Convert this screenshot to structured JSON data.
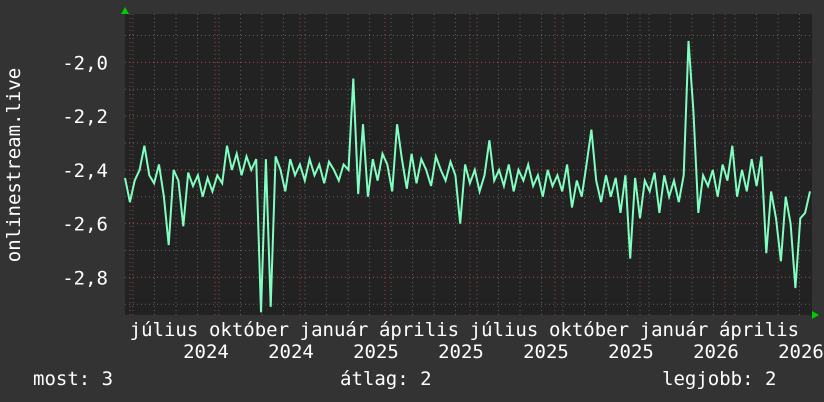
{
  "chart_data": {
    "type": "line",
    "ylabel": "onlinestream.live",
    "ylim": [
      -2.94,
      -1.82
    ],
    "yticks": [
      -2.8,
      -2.6,
      -2.4,
      -2.2,
      -2.0
    ],
    "ytick_labels": [
      "-2,8",
      "-2,6",
      "-2,4",
      "-2,2",
      "-2,0"
    ],
    "xtick_labels": [
      "július",
      "2024",
      "október",
      "2024",
      "január",
      "2025",
      "április",
      "2025",
      "július",
      "2025",
      "október",
      "2025",
      "január",
      "2026",
      "április",
      "2026"
    ],
    "grid": true,
    "colors": {
      "line": "#80ffc0",
      "background": "#333333",
      "plot": "#222222",
      "major_grid": "#a04040",
      "minor_grid": "#606060",
      "arrow": "#00cc00"
    },
    "values": [
      -2.43,
      -2.52,
      -2.44,
      -2.4,
      -2.31,
      -2.42,
      -2.45,
      -2.38,
      -2.5,
      -2.68,
      -2.4,
      -2.44,
      -2.61,
      -2.41,
      -2.46,
      -2.42,
      -2.5,
      -2.43,
      -2.48,
      -2.42,
      -2.45,
      -2.31,
      -2.4,
      -2.34,
      -2.42,
      -2.35,
      -2.4,
      -2.36,
      -2.93,
      -2.36,
      -2.91,
      -2.35,
      -2.4,
      -2.48,
      -2.36,
      -2.42,
      -2.38,
      -2.44,
      -2.36,
      -2.42,
      -2.38,
      -2.45,
      -2.37,
      -2.4,
      -2.44,
      -2.38,
      -2.4,
      -2.06,
      -2.49,
      -2.23,
      -2.5,
      -2.36,
      -2.44,
      -2.34,
      -2.38,
      -2.48,
      -2.23,
      -2.36,
      -2.47,
      -2.34,
      -2.45,
      -2.36,
      -2.4,
      -2.46,
      -2.35,
      -2.4,
      -2.44,
      -2.37,
      -2.42,
      -2.6,
      -2.38,
      -2.45,
      -2.4,
      -2.48,
      -2.42,
      -2.29,
      -2.44,
      -2.4,
      -2.46,
      -2.38,
      -2.48,
      -2.4,
      -2.44,
      -2.38,
      -2.46,
      -2.42,
      -2.5,
      -2.4,
      -2.46,
      -2.42,
      -2.48,
      -2.38,
      -2.54,
      -2.44,
      -2.5,
      -2.38,
      -2.25,
      -2.44,
      -2.52,
      -2.42,
      -2.5,
      -2.43,
      -2.56,
      -2.42,
      -2.73,
      -2.43,
      -2.58,
      -2.44,
      -2.48,
      -2.41,
      -2.56,
      -2.42,
      -2.5,
      -2.44,
      -2.52,
      -2.42,
      -1.92,
      -2.18,
      -2.56,
      -2.42,
      -2.46,
      -2.4,
      -2.5,
      -2.38,
      -2.44,
      -2.31,
      -2.5,
      -2.4,
      -2.48,
      -2.36,
      -2.46,
      -2.35,
      -2.71,
      -2.48,
      -2.58,
      -2.74,
      -2.5,
      -2.6,
      -2.84,
      -2.58,
      -2.56,
      -2.48
    ]
  },
  "footer": {
    "current": "most: 3",
    "average": "átlag: 2",
    "best": "legjobb: 2"
  }
}
